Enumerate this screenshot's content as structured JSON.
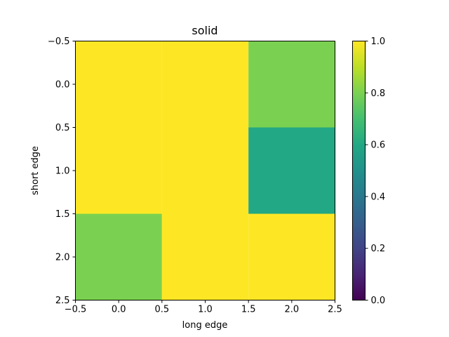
{
  "chart_data": {
    "type": "heatmap",
    "title": "solid",
    "xlabel": "long edge",
    "ylabel": "short edge",
    "x_ticks": [
      "−0.5",
      "0.0",
      "0.5",
      "1.0",
      "1.5",
      "2.0",
      "2.5"
    ],
    "y_ticks": [
      "−0.5",
      "0.0",
      "0.5",
      "1.0",
      "1.5",
      "2.0",
      "2.5"
    ],
    "xlim": [
      -0.5,
      2.5
    ],
    "ylim": [
      2.5,
      -0.5
    ],
    "matrix": [
      [
        1.0,
        1.0,
        0.8
      ],
      [
        1.0,
        1.0,
        0.6
      ],
      [
        0.8,
        1.0,
        1.0
      ]
    ],
    "colorbar": {
      "colormap": "viridis",
      "range": [
        0.0,
        1.0
      ],
      "ticks": [
        "0.0",
        "0.2",
        "0.4",
        "0.6",
        "0.8",
        "1.0"
      ]
    },
    "colors": {
      "1.0": "#fde725",
      "0.8": "#7ad151",
      "0.6": "#22a884"
    }
  }
}
